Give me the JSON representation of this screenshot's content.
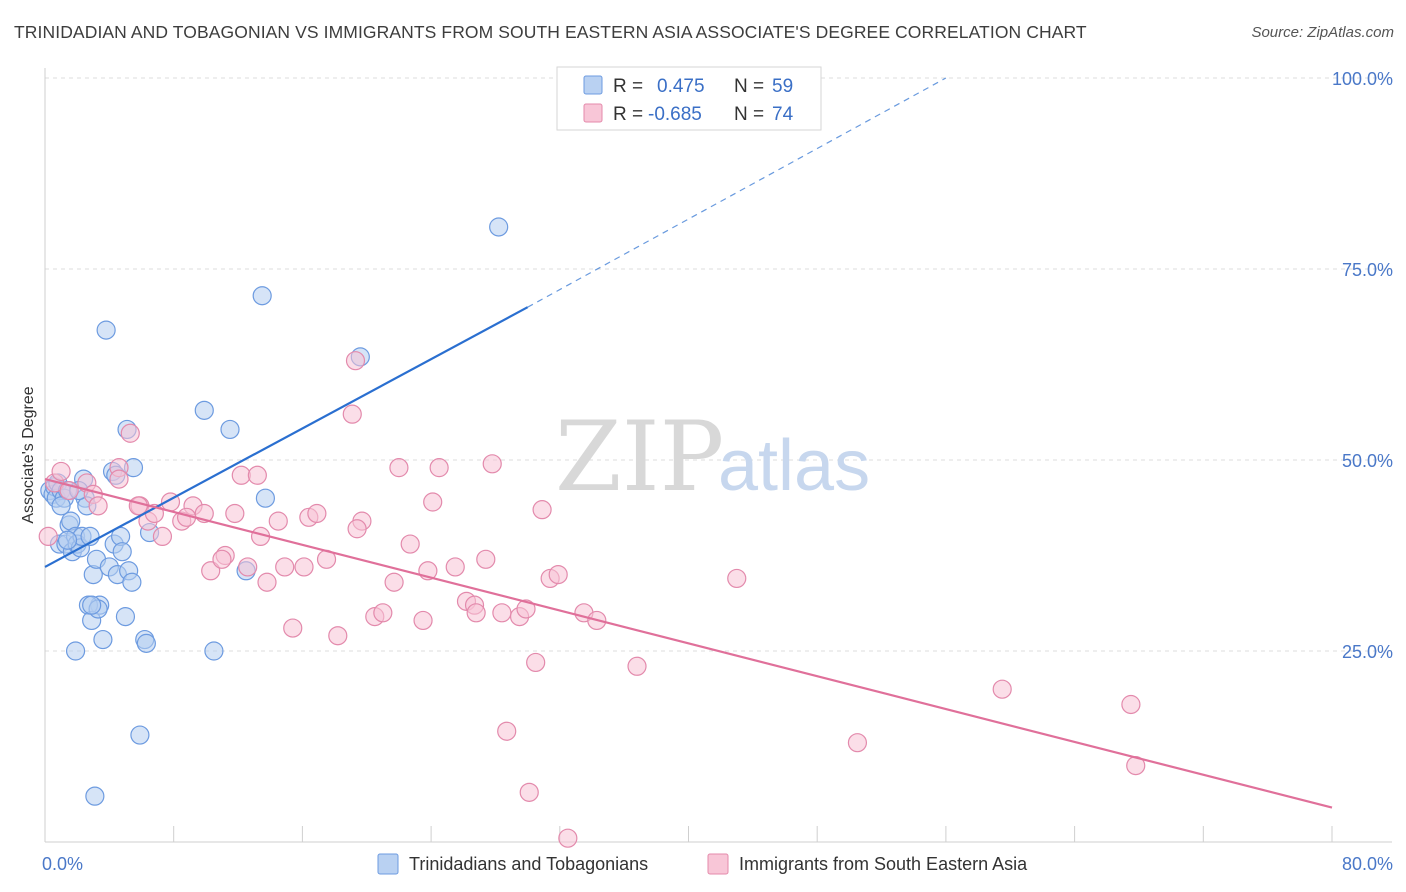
{
  "header": {
    "title": "TRINIDADIAN AND TOBAGONIAN VS IMMIGRANTS FROM SOUTH EASTERN ASIA ASSOCIATE'S DEGREE CORRELATION CHART",
    "source": "Source: ZipAtlas.com"
  },
  "watermark": {
    "zip": "ZIP",
    "atlas": "atlas"
  },
  "colors": {
    "blue": "#5b8fd8",
    "blue_fill": "#a9c6ee",
    "blue_line": "#2a6fd0",
    "pink": "#e07aa0",
    "pink_fill": "#f5bcd0",
    "pink_line": "#e0709a",
    "tick": "#4a78c8"
  },
  "legend": {
    "r_label": "R =",
    "n_label": "N =",
    "blue": {
      "r": "0.475",
      "n": "59"
    },
    "pink": {
      "r": "-0.685",
      "n": "74"
    }
  },
  "chart_data": {
    "type": "scatter",
    "xlim": [
      0,
      80
    ],
    "ylim": [
      0,
      100
    ],
    "ylabel": "Associate's Degree",
    "x_tick_labels": {
      "left": "0.0%",
      "right": "80.0%"
    },
    "y_ticks": [
      {
        "value": 100,
        "label": "100.0%"
      },
      {
        "value": 75,
        "label": "75.0%"
      },
      {
        "value": 50,
        "label": "50.0%"
      },
      {
        "value": 25,
        "label": "25.0%"
      }
    ],
    "grid": true,
    "series": [
      {
        "name": "Trinidadians and Tobagonians",
        "color": "blue",
        "trend": {
          "x0": 0,
          "y0": 36,
          "x1": 30,
          "y1": 70,
          "dash_to_x": 56,
          "dash_to_y": 100
        },
        "points": [
          [
            0.3,
            46
          ],
          [
            0.5,
            45.5
          ],
          [
            0.6,
            46.5
          ],
          [
            0.7,
            45
          ],
          [
            0.8,
            47
          ],
          [
            1.0,
            46
          ],
          [
            1.2,
            45
          ],
          [
            1.4,
            46
          ],
          [
            0.9,
            39
          ],
          [
            1.5,
            41.5
          ],
          [
            1.6,
            42
          ],
          [
            1.3,
            39
          ],
          [
            1.7,
            38
          ],
          [
            1.9,
            40
          ],
          [
            2.0,
            39
          ],
          [
            2.2,
            38.5
          ],
          [
            2.3,
            40
          ],
          [
            2.5,
            45
          ],
          [
            2.6,
            44
          ],
          [
            2.4,
            47.5
          ],
          [
            2.8,
            40
          ],
          [
            3.0,
            35
          ],
          [
            3.2,
            37
          ],
          [
            3.4,
            31
          ],
          [
            3.6,
            26.5
          ],
          [
            2.7,
            31
          ],
          [
            2.9,
            29
          ],
          [
            3.3,
            30.5
          ],
          [
            1.9,
            25
          ],
          [
            3.8,
            67
          ],
          [
            4.0,
            36
          ],
          [
            4.3,
            39
          ],
          [
            4.5,
            35
          ],
          [
            4.7,
            40
          ],
          [
            4.8,
            38
          ],
          [
            5.0,
            29.5
          ],
          [
            5.2,
            35.5
          ],
          [
            5.4,
            34
          ],
          [
            5.5,
            49
          ],
          [
            4.2,
            48.5
          ],
          [
            5.1,
            54
          ],
          [
            6.2,
            26.5
          ],
          [
            6.3,
            26
          ],
          [
            6.5,
            40.5
          ],
          [
            9.9,
            56.5
          ],
          [
            10.5,
            25
          ],
          [
            11.5,
            54
          ],
          [
            12.5,
            35.5
          ],
          [
            13.5,
            71.5
          ],
          [
            13.7,
            45
          ],
          [
            19.6,
            63.5
          ],
          [
            28.2,
            80.5
          ],
          [
            5.9,
            14
          ],
          [
            3.1,
            6
          ],
          [
            1.0,
            44
          ],
          [
            2.1,
            46
          ],
          [
            4.4,
            48
          ],
          [
            1.4,
            39.5
          ],
          [
            2.9,
            31
          ]
        ]
      },
      {
        "name": "Immigrants from South Eastern Asia",
        "color": "pink",
        "trend": {
          "x0": 0,
          "y0": 47.5,
          "x1": 80,
          "y1": 4.5
        },
        "points": [
          [
            0.2,
            40
          ],
          [
            0.6,
            47
          ],
          [
            1.0,
            48.5
          ],
          [
            1.5,
            46
          ],
          [
            2.6,
            47
          ],
          [
            3.0,
            45.5
          ],
          [
            3.3,
            44
          ],
          [
            4.6,
            49
          ],
          [
            5.3,
            53.5
          ],
          [
            4.6,
            47.5
          ],
          [
            5.9,
            44
          ],
          [
            6.4,
            42
          ],
          [
            6.8,
            43
          ],
          [
            7.3,
            40
          ],
          [
            7.8,
            44.5
          ],
          [
            8.5,
            42
          ],
          [
            9.2,
            44
          ],
          [
            9.9,
            43
          ],
          [
            10.3,
            35.5
          ],
          [
            11.2,
            37.5
          ],
          [
            11.8,
            43
          ],
          [
            12.2,
            48
          ],
          [
            13.2,
            48
          ],
          [
            13.4,
            40
          ],
          [
            14.5,
            42
          ],
          [
            14.9,
            36
          ],
          [
            15.4,
            28
          ],
          [
            16.4,
            42.5
          ],
          [
            16.9,
            43
          ],
          [
            17.5,
            37
          ],
          [
            18.2,
            27
          ],
          [
            19.1,
            56
          ],
          [
            19.3,
            63
          ],
          [
            19.7,
            42
          ],
          [
            20.5,
            29.5
          ],
          [
            21.0,
            30
          ],
          [
            21.7,
            34
          ],
          [
            22.0,
            49
          ],
          [
            22.7,
            39
          ],
          [
            23.5,
            29
          ],
          [
            24.1,
            44.5
          ],
          [
            24.5,
            49
          ],
          [
            25.5,
            36
          ],
          [
            26.2,
            31.5
          ],
          [
            26.7,
            31
          ],
          [
            27.4,
            37
          ],
          [
            27.8,
            49.5
          ],
          [
            28.4,
            30
          ],
          [
            29.5,
            29.5
          ],
          [
            29.9,
            30.5
          ],
          [
            30.5,
            23.5
          ],
          [
            30.9,
            43.5
          ],
          [
            31.4,
            34.5
          ],
          [
            31.9,
            35
          ],
          [
            33.5,
            30
          ],
          [
            34.3,
            29
          ],
          [
            36.8,
            23
          ],
          [
            43.0,
            34.5
          ],
          [
            50.5,
            13
          ],
          [
            59.5,
            20
          ],
          [
            67.5,
            18
          ],
          [
            67.8,
            10
          ],
          [
            28.7,
            14.5
          ],
          [
            30.1,
            6.5
          ],
          [
            32.5,
            0.5
          ],
          [
            5.8,
            44
          ],
          [
            8.8,
            42.5
          ],
          [
            11.0,
            37
          ],
          [
            13.8,
            34
          ],
          [
            16.1,
            36
          ],
          [
            19.4,
            41
          ],
          [
            23.8,
            35.5
          ],
          [
            26.8,
            30
          ],
          [
            12.6,
            36
          ]
        ]
      }
    ]
  }
}
